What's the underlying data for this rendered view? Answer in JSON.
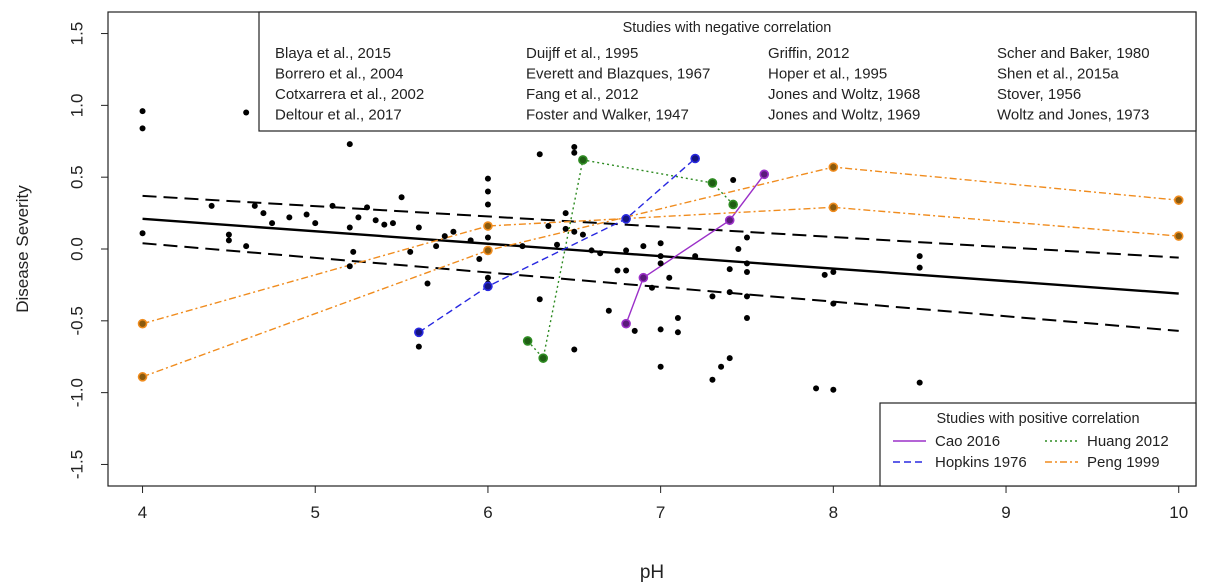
{
  "chart_data": {
    "type": "scatter",
    "xlabel": "pH",
    "ylabel": "Disease Severity",
    "xlim": [
      3.8,
      10.1
    ],
    "ylim": [
      -1.65,
      1.65
    ],
    "xticks": [
      4,
      5,
      6,
      7,
      8,
      9,
      10
    ],
    "yticks": [
      -1.5,
      -1.0,
      -0.5,
      0.0,
      0.5,
      1.0,
      1.5
    ],
    "xtick_labels": [
      "4",
      "5",
      "6",
      "7",
      "8",
      "9",
      "10"
    ],
    "ytick_labels": [
      "-1.5",
      "-1.0",
      "-0.5",
      "0.0",
      "0.5",
      "1.0",
      "1.5"
    ],
    "grid": false,
    "negative_legend": {
      "title": "Studies with negative correlation",
      "entries": [
        "Blaya et al., 2015",
        "Borrero et al., 2004",
        "Cotxarrera et al., 2002",
        "Deltour et al., 2017",
        "Duijff et al., 1995",
        "Everett and Blazques, 1967",
        "Fang et al., 2012",
        "Foster and Walker, 1947",
        "Griffin, 2012",
        "Hoper et al., 1995",
        "Jones and Woltz, 1968",
        "Jones and Woltz, 1969",
        "Scher and Baker, 1980",
        "Shen et al., 2015a",
        "Stover, 1956",
        "Woltz and Jones, 1973"
      ]
    },
    "positive_legend": {
      "title": "Studies with positive correlation",
      "entries": [
        {
          "label": "Cao 2016",
          "color": "#9b30c8",
          "dash": "solid"
        },
        {
          "label": "Huang 2012",
          "color": "#2e8b22",
          "dash": "dotted"
        },
        {
          "label": "Hopkins 1976",
          "color": "#2828e0",
          "dash": "dashed"
        },
        {
          "label": "Peng 1999",
          "color": "#f08c1e",
          "dash": "dashdot"
        }
      ]
    },
    "regression": {
      "fit": [
        [
          4.0,
          0.21
        ],
        [
          10.0,
          -0.31
        ]
      ],
      "upper": [
        [
          4.0,
          0.37
        ],
        [
          10.0,
          -0.06
        ]
      ],
      "lower": [
        [
          4.0,
          0.04
        ],
        [
          10.0,
          -0.57
        ]
      ]
    },
    "positive_series": [
      {
        "name": "Cao 2016",
        "color": "#9b30c8",
        "point_color": "#5a1a7a",
        "dash": "solid",
        "points": [
          [
            6.8,
            -0.52
          ],
          [
            6.9,
            -0.2
          ],
          [
            7.4,
            0.2
          ],
          [
            7.6,
            0.52
          ]
        ]
      },
      {
        "name": "Huang 2012",
        "color": "#2e8b22",
        "point_color": "#1f5e14",
        "dash": "dotted",
        "points": [
          [
            6.23,
            -0.64
          ],
          [
            6.32,
            -0.76
          ],
          [
            6.55,
            0.62
          ],
          [
            7.3,
            0.46
          ],
          [
            7.42,
            0.31
          ]
        ]
      },
      {
        "name": "Hopkins 1976",
        "color": "#2828e0",
        "point_color": "#141480",
        "dash": "dashed",
        "points": [
          [
            5.6,
            -0.58
          ],
          [
            6.0,
            -0.26
          ],
          [
            6.8,
            0.21
          ],
          [
            7.2,
            0.63
          ]
        ]
      },
      {
        "name": "Peng 1999 (a)",
        "color": "#f08c1e",
        "point_color": "#8a5a0e",
        "dash": "dashdot",
        "points": [
          [
            4.0,
            -0.52
          ],
          [
            6.0,
            0.16
          ],
          [
            8.0,
            0.29
          ],
          [
            10.0,
            0.09
          ]
        ]
      },
      {
        "name": "Peng 1999 (b)",
        "color": "#f08c1e",
        "point_color": "#8a5a0e",
        "dash": "dashdot",
        "points": [
          [
            4.0,
            -0.89
          ],
          [
            6.0,
            -0.01
          ],
          [
            8.0,
            0.57
          ],
          [
            10.0,
            0.34
          ]
        ]
      }
    ],
    "scatter_points": [
      [
        4.0,
        0.96
      ],
      [
        4.0,
        0.84
      ],
      [
        4.0,
        0.11
      ],
      [
        4.4,
        0.3
      ],
      [
        4.5,
        0.1
      ],
      [
        4.5,
        0.06
      ],
      [
        4.6,
        0.95
      ],
      [
        4.6,
        0.02
      ],
      [
        4.65,
        0.3
      ],
      [
        4.7,
        0.25
      ],
      [
        4.75,
        0.18
      ],
      [
        4.85,
        0.22
      ],
      [
        4.95,
        0.24
      ],
      [
        5.0,
        0.18
      ],
      [
        5.1,
        0.3
      ],
      [
        5.2,
        0.73
      ],
      [
        5.2,
        0.15
      ],
      [
        5.2,
        -0.12
      ],
      [
        5.22,
        -0.02
      ],
      [
        5.25,
        0.22
      ],
      [
        5.3,
        0.29
      ],
      [
        5.35,
        0.2
      ],
      [
        5.4,
        0.17
      ],
      [
        5.45,
        0.18
      ],
      [
        5.5,
        0.36
      ],
      [
        5.55,
        -0.02
      ],
      [
        5.6,
        0.15
      ],
      [
        5.6,
        -0.68
      ],
      [
        5.65,
        -0.24
      ],
      [
        5.7,
        0.02
      ],
      [
        5.75,
        0.09
      ],
      [
        5.8,
        0.12
      ],
      [
        5.9,
        0.06
      ],
      [
        5.95,
        -0.07
      ],
      [
        6.0,
        0.49
      ],
      [
        6.0,
        0.4
      ],
      [
        6.0,
        0.31
      ],
      [
        6.0,
        0.08
      ],
      [
        6.0,
        -0.2
      ],
      [
        6.0,
        -0.24
      ],
      [
        6.2,
        0.02
      ],
      [
        6.3,
        -0.35
      ],
      [
        6.3,
        0.66
      ],
      [
        6.35,
        0.16
      ],
      [
        6.4,
        0.03
      ],
      [
        6.45,
        0.25
      ],
      [
        6.45,
        0.14
      ],
      [
        6.5,
        0.67
      ],
      [
        6.5,
        0.71
      ],
      [
        6.5,
        0.12
      ],
      [
        6.5,
        -0.7
      ],
      [
        6.55,
        0.1
      ],
      [
        6.6,
        -0.01
      ],
      [
        6.65,
        -0.03
      ],
      [
        6.7,
        -0.43
      ],
      [
        6.75,
        -0.15
      ],
      [
        6.8,
        -0.01
      ],
      [
        6.8,
        -0.15
      ],
      [
        6.85,
        -0.57
      ],
      [
        6.9,
        0.02
      ],
      [
        6.95,
        -0.27
      ],
      [
        7.0,
        0.04
      ],
      [
        7.0,
        -0.05
      ],
      [
        7.0,
        -0.1
      ],
      [
        7.0,
        -0.56
      ],
      [
        7.0,
        -0.82
      ],
      [
        7.05,
        -0.2
      ],
      [
        7.1,
        -0.48
      ],
      [
        7.1,
        -0.58
      ],
      [
        7.2,
        -0.05
      ],
      [
        7.3,
        -0.33
      ],
      [
        7.3,
        -0.91
      ],
      [
        7.35,
        -0.82
      ],
      [
        7.4,
        -0.3
      ],
      [
        7.4,
        -0.14
      ],
      [
        7.4,
        -0.76
      ],
      [
        7.45,
        0.0
      ],
      [
        7.5,
        -0.1
      ],
      [
        7.5,
        -0.16
      ],
      [
        7.5,
        -0.33
      ],
      [
        7.5,
        -0.48
      ],
      [
        7.5,
        0.08
      ],
      [
        7.9,
        -0.97
      ],
      [
        7.95,
        -0.18
      ],
      [
        8.0,
        -0.38
      ],
      [
        8.0,
        -0.98
      ],
      [
        8.0,
        -0.16
      ],
      [
        8.5,
        -0.13
      ],
      [
        8.5,
        -0.05
      ],
      [
        8.5,
        -0.93
      ],
      [
        7.42,
        0.48
      ]
    ]
  }
}
